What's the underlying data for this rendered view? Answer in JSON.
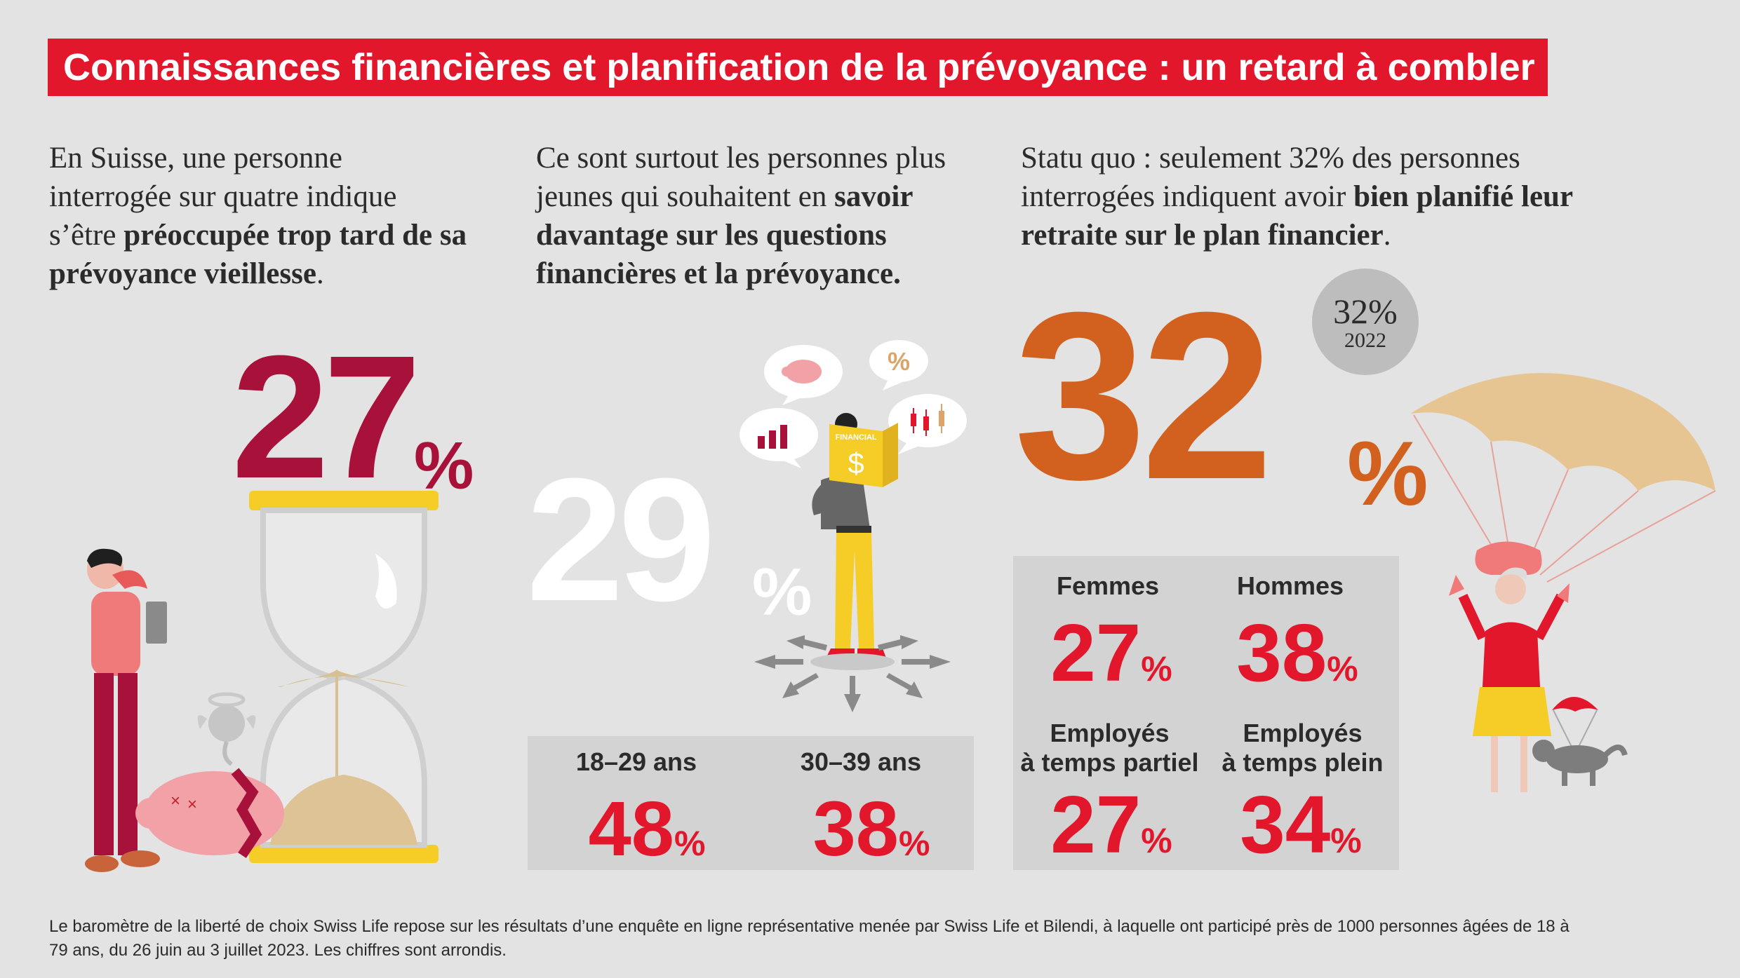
{
  "title": "Connaissances financières et planification de la prévoyance : un retard à combler",
  "col1": {
    "text_pre": "En Suisse, une personne interrogée sur quatre indique s’être ",
    "text_bold": "préoccupée trop tard de sa prévoyance vieillesse",
    "text_post": ".",
    "value": "27",
    "pct": "%"
  },
  "col2": {
    "text_pre": "Ce sont surtout les personnes plus jeunes qui souhaitent en ",
    "text_bold": "savoir davantage sur les questions financières et la prévoyance.",
    "value": "29",
    "pct": "%",
    "book_label": "FINANCIAL",
    "book_symbol": "$",
    "bubble_symbol": "%",
    "breakdown": [
      {
        "label": "18–29 ans",
        "value": "48",
        "pct": "%"
      },
      {
        "label": "30–39 ans",
        "value": "38",
        "pct": "%"
      }
    ]
  },
  "col3": {
    "text_pre": "Statu quo : seulement 32% des personnes interrogées indiquent avoir ",
    "text_bold": "bien planifié leur retraite sur le plan financier",
    "text_post": ".",
    "value": "32",
    "pct": "%",
    "badge_value": "32%",
    "badge_year": "2022",
    "breakdown": [
      {
        "label_1": "Femmes",
        "label_2": "",
        "value": "27",
        "pct": "%"
      },
      {
        "label_1": "Hommes",
        "label_2": "",
        "value": "38",
        "pct": "%"
      },
      {
        "label_1": "Employés",
        "label_2": "à temps partiel",
        "value": "27",
        "pct": "%"
      },
      {
        "label_1": "Employés",
        "label_2": "à temps plein",
        "value": "34",
        "pct": "%"
      }
    ]
  },
  "footnote": "Le baromètre de la liberté de choix Swiss Life repose sur les résultats d’une enquête en ligne représentative menée par Swiss Life et Bilendi, à laquelle ont participé près de 1000 personnes âgées de 18 à 79 ans, du 26 juin au 3 juillet 2023. Les chiffres sont arrondis.",
  "colors": {
    "brand_red": "#e2172c",
    "wine": "#a8113a",
    "orange": "#d2611f",
    "white_num": "#ffffff",
    "box_grey": "#d3d3d3",
    "background": "#e3e3e3"
  },
  "icons": {
    "col1": [
      "hourglass-icon",
      "worried-man-icon",
      "broken-piggy-bank-icon"
    ],
    "col2": [
      "thinking-person-icon",
      "piggy-bank-bubble-icon",
      "percent-bubble-icon",
      "bar-chart-bubble-icon",
      "candlestick-bubble-icon",
      "direction-arrows-icon"
    ],
    "col3": [
      "parachute-grandma-icon",
      "parachute-dog-icon"
    ]
  }
}
